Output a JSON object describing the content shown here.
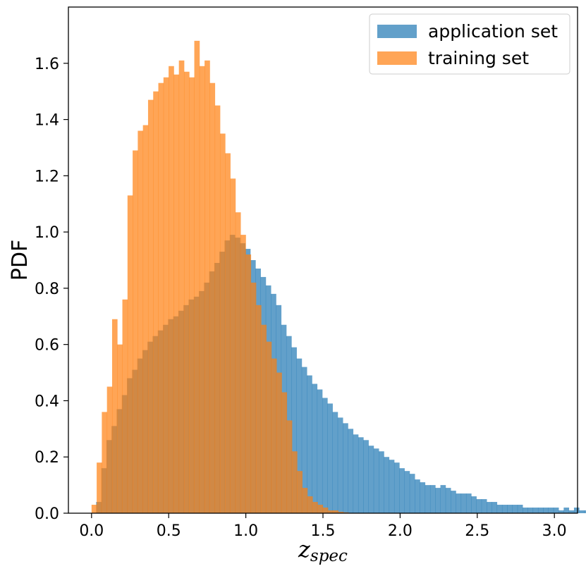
{
  "chart_data": {
    "type": "histogram",
    "xlabel": {
      "main": "z",
      "sub": "spec"
    },
    "ylabel": "PDF",
    "xlim": [
      -0.15,
      3.15
    ],
    "ylim": [
      0.0,
      1.8
    ],
    "xticks": [
      "0.0",
      "0.5",
      "1.0",
      "1.5",
      "2.0",
      "2.5",
      "3.0"
    ],
    "xtick_values": [
      0.0,
      0.5,
      1.0,
      1.5,
      2.0,
      2.5,
      3.0
    ],
    "yticks": [
      "0.0",
      "0.2",
      "0.4",
      "0.6",
      "0.8",
      "1.0",
      "1.2",
      "1.4",
      "1.6"
    ],
    "ytick_values": [
      0.0,
      0.2,
      0.4,
      0.6,
      0.8,
      1.0,
      1.2,
      1.4,
      1.6
    ],
    "legend_position": "top-right",
    "grid": false,
    "series": [
      {
        "name": "application set",
        "color": "#1f77b4",
        "alpha": 0.7,
        "bin_start": 0.03,
        "bin_width": 0.0333,
        "values": [
          0.04,
          0.16,
          0.26,
          0.31,
          0.37,
          0.42,
          0.48,
          0.51,
          0.55,
          0.58,
          0.61,
          0.63,
          0.65,
          0.67,
          0.69,
          0.7,
          0.72,
          0.74,
          0.76,
          0.77,
          0.79,
          0.82,
          0.86,
          0.89,
          0.93,
          0.97,
          0.99,
          0.98,
          0.96,
          0.94,
          0.9,
          0.87,
          0.84,
          0.81,
          0.78,
          0.74,
          0.67,
          0.63,
          0.59,
          0.55,
          0.52,
          0.49,
          0.46,
          0.44,
          0.41,
          0.39,
          0.36,
          0.34,
          0.32,
          0.3,
          0.28,
          0.27,
          0.26,
          0.24,
          0.23,
          0.22,
          0.2,
          0.19,
          0.18,
          0.16,
          0.15,
          0.14,
          0.12,
          0.11,
          0.1,
          0.1,
          0.09,
          0.1,
          0.09,
          0.08,
          0.07,
          0.07,
          0.07,
          0.06,
          0.05,
          0.05,
          0.04,
          0.04,
          0.03,
          0.03,
          0.03,
          0.03,
          0.03,
          0.02,
          0.02,
          0.02,
          0.02,
          0.02,
          0.02,
          0.02,
          0.01,
          0.02,
          0.01,
          0.02,
          0.01,
          0.01,
          0.01,
          0.01,
          0.01,
          0.01
        ]
      },
      {
        "name": "training set",
        "color": "#ff7f0e",
        "alpha": 0.7,
        "bin_start": 0.0,
        "bin_width": 0.0333,
        "values": [
          0.03,
          0.18,
          0.36,
          0.45,
          0.69,
          0.6,
          0.76,
          1.13,
          1.29,
          1.36,
          1.38,
          1.47,
          1.5,
          1.53,
          1.55,
          1.59,
          1.56,
          1.61,
          1.57,
          1.55,
          1.68,
          1.59,
          1.61,
          1.53,
          1.45,
          1.35,
          1.28,
          1.19,
          1.07,
          0.99,
          0.92,
          0.82,
          0.74,
          0.67,
          0.61,
          0.55,
          0.5,
          0.43,
          0.33,
          0.22,
          0.15,
          0.09,
          0.06,
          0.04,
          0.03,
          0.02,
          0.01,
          0.01,
          0.005,
          0.003
        ]
      }
    ]
  }
}
